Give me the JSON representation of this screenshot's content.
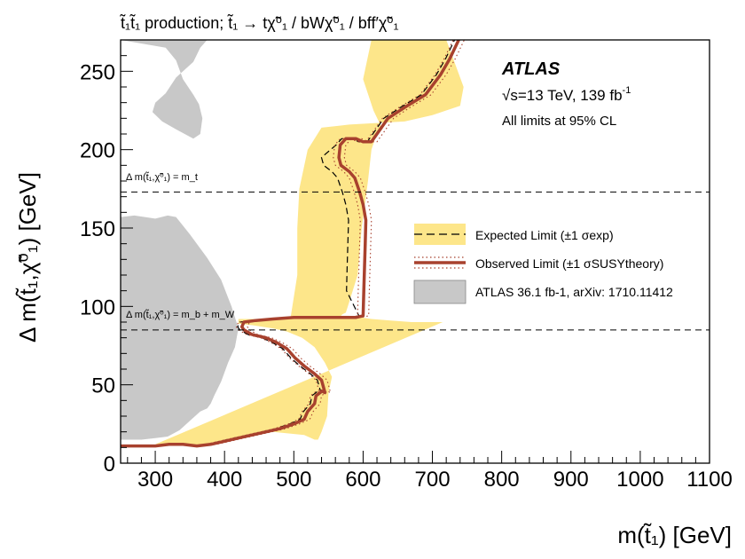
{
  "chart_data": {
    "type": "contour",
    "title": "t̃₁t̃₁ production; t̃₁ → tχ̃⁰₁ / bWχ̃⁰₁ / bff′χ̃⁰₁",
    "xlabel": "m(t̃₁) [GeV]",
    "ylabel": "Δ m(t̃₁,χ̃⁰₁) [GeV]",
    "xlim": [
      250,
      1100
    ],
    "ylim": [
      0,
      270
    ],
    "x_ticks": [
      300,
      400,
      500,
      600,
      700,
      800,
      900,
      1000,
      1100
    ],
    "y_ticks": [
      0,
      50,
      100,
      150,
      200,
      250
    ],
    "grid": false,
    "legend_placement": "center-right",
    "experiment": "ATLAS",
    "energy_lumi": "√s=13 TeV, 139 fb",
    "energy_lumi_sup": "-1",
    "limits_note": "All limits at 95% CL",
    "reference_lines": [
      {
        "label": "Δ m(t̃₁,χ̃⁰₁) = m_t",
        "y": 173
      },
      {
        "label": "Δ m(t̃₁,χ̃⁰₁) = m_b + m_W",
        "y": 85
      }
    ],
    "legend": [
      {
        "label": "Expected Limit (±1 σexp)",
        "style": "dashed-band",
        "color": "#fde68a"
      },
      {
        "label": "Observed Limit (±1 σSUSYtheory)",
        "style": "solid-dotted",
        "color": "#a8412e"
      },
      {
        "label": "ATLAS 36.1 fb-1, arXiv: 1710.11412",
        "style": "fill",
        "color": "#c8c8c8"
      }
    ],
    "previous_limit": [
      {
        "name": "upper",
        "x": [
          250,
          250,
          315,
          330,
          340,
          355,
          363,
          368,
          365,
          355,
          330,
          310,
          296,
          300,
          315,
          330,
          355,
          365,
          375,
          400,
          420,
          430,
          470,
          480,
          500,
          520,
          540,
          560,
          575,
          590,
          615,
          650,
          680,
          715,
          740,
          745,
          740,
          720,
          690,
          660,
          620,
          590,
          560,
          530,
          500,
          470,
          440,
          410,
          390,
          375,
          365,
          352,
          344,
          335,
          310,
          290,
          250
        ],
        "y": [
          270,
          270,
          265,
          257,
          245,
          235,
          229,
          220,
          210,
          207,
          213,
          218,
          224,
          230,
          236,
          246,
          256,
          265,
          270,
          270,
          270,
          270,
          270,
          270,
          270,
          270,
          270,
          270,
          270,
          270,
          270,
          270,
          270,
          270,
          270,
          270,
          270,
          270,
          270,
          270,
          270,
          270,
          270,
          270,
          270,
          270,
          270,
          270,
          270,
          270,
          270,
          270,
          270,
          270,
          270,
          270,
          270
        ]
      },
      {
        "name": "lower",
        "x": [
          250,
          270,
          300,
          318,
          330,
          350,
          375,
          395,
          410,
          420,
          415,
          405,
          395,
          385,
          380,
          375,
          365,
          350,
          335,
          318,
          300,
          280,
          250
        ],
        "y": [
          157,
          158,
          156,
          158,
          157,
          146,
          131,
          117,
          100,
          86,
          74,
          64,
          52,
          43,
          38,
          35,
          33,
          27,
          21,
          17,
          16,
          15,
          15
        ]
      }
    ],
    "expected_band": [
      {
        "x": [
          300,
          370,
          410,
          470,
          515,
          530,
          535,
          540,
          548,
          550,
          555,
          545,
          530,
          512,
          490,
          470,
          440,
          420,
          420,
          440,
          470,
          495,
          505,
          505,
          508,
          520,
          540,
          580,
          620,
          660,
          700,
          740,
          745,
          720,
          690,
          660,
          630,
          612,
          600,
          615,
          628,
          622,
          618,
          612,
          607,
          598,
          592,
          578,
          575,
          570,
          568,
          580,
          612,
          640,
          670,
          700,
          715
        ],
        "y": [
          12,
          11,
          15,
          20,
          18,
          15,
          15,
          20,
          30,
          45,
          55,
          64,
          74,
          80,
          84,
          86,
          88,
          89,
          92,
          92,
          92,
          92,
          120,
          150,
          175,
          200,
          214,
          216,
          217,
          218,
          222,
          228,
          240,
          270,
          270,
          270,
          270,
          270,
          245,
          225,
          213,
          211,
          208,
          200,
          180,
          150,
          120,
          100,
          96,
          95,
          94,
          94,
          92,
          91,
          90,
          90,
          90
        ]
      }
    ],
    "observed": {
      "x": [
        250,
        280,
        300,
        320,
        340,
        360,
        380,
        400,
        420,
        440,
        460,
        480,
        500,
        510,
        515,
        520,
        522,
        526,
        530,
        532,
        535,
        538,
        540,
        545,
        540,
        530,
        515,
        502,
        490,
        475,
        460,
        440,
        428,
        425,
        428,
        445,
        470,
        500,
        530,
        560,
        590,
        600,
        601,
        602,
        603,
        604,
        600,
        595,
        588,
        580,
        568,
        565,
        567,
        575,
        590,
        600,
        612,
        620,
        636,
        660,
        690,
        712,
        725,
        738
      ],
      "y": [
        11,
        11,
        11,
        12,
        12,
        11,
        12,
        14,
        16,
        18,
        20,
        22,
        25,
        27,
        28,
        33,
        34,
        36,
        38,
        43,
        44,
        45,
        46,
        45,
        53,
        57,
        62,
        67,
        73,
        77,
        80,
        82,
        85,
        87,
        90,
        91,
        92,
        93,
        93,
        93,
        93,
        94,
        110,
        125,
        140,
        155,
        165,
        173,
        182,
        186,
        190,
        195,
        203,
        207,
        207,
        205,
        205,
        210,
        220,
        227,
        235,
        248,
        258,
        270
      ]
    }
  }
}
